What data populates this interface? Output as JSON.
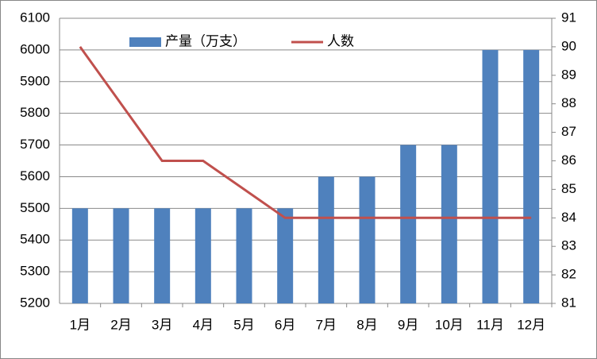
{
  "chart_data": {
    "type": "bar",
    "categories": [
      "1月",
      "2月",
      "3月",
      "4月",
      "5月",
      "6月",
      "7月",
      "8月",
      "9月",
      "10月",
      "11月",
      "12月"
    ],
    "series": [
      {
        "name": "产量（万支）",
        "type": "bar",
        "color": "#4f81bd",
        "values": [
          5500,
          5500,
          5500,
          5500,
          5500,
          5500,
          5600,
          5600,
          5700,
          5700,
          6000,
          6000
        ]
      },
      {
        "name": "人数",
        "type": "line",
        "axis": "y2",
        "color": "#c0504d",
        "values": [
          90,
          88,
          86,
          86,
          85,
          84,
          84,
          84,
          84,
          84,
          84,
          84
        ]
      }
    ],
    "ylim": [
      5200,
      6100
    ],
    "yticks": [
      5200,
      5300,
      5400,
      5500,
      5600,
      5700,
      5800,
      5900,
      6000,
      6100
    ],
    "y2lim": [
      81,
      91
    ],
    "y2ticks": [
      81,
      82,
      83,
      84,
      85,
      86,
      87,
      88,
      89,
      90,
      91
    ],
    "grid": true,
    "legend": "top"
  }
}
